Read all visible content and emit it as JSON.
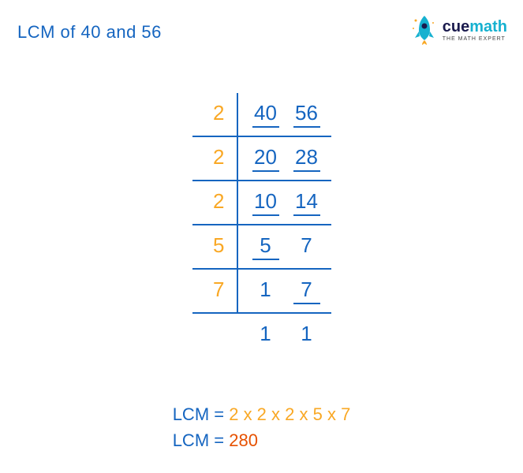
{
  "title": {
    "text": "LCM of 40 and 56",
    "color": "#1565c0"
  },
  "logo": {
    "brand_part1": "cue",
    "brand_part2": "math",
    "tagline": "THE MATH EXPERT",
    "rocket_body_color": "#16b1d0",
    "rocket_flame_color": "#f9a825",
    "text_dark_color": "#1a1a4d",
    "text_accent_color": "#16b1d0"
  },
  "colors": {
    "divisor": "#f9a825",
    "number": "#1565c0",
    "line": "#1565c0",
    "expression": "#f9a825",
    "result": "#e65100",
    "label": "#1565c0"
  },
  "division": {
    "type": "lcm-division-ladder",
    "font_size": 26,
    "rows": [
      {
        "divisor": "2",
        "values": [
          {
            "n": "40",
            "underlined": true
          },
          {
            "n": "56",
            "underlined": true
          }
        ]
      },
      {
        "divisor": "2",
        "values": [
          {
            "n": "20",
            "underlined": true
          },
          {
            "n": "28",
            "underlined": true
          }
        ]
      },
      {
        "divisor": "2",
        "values": [
          {
            "n": "10",
            "underlined": true
          },
          {
            "n": "14",
            "underlined": true
          }
        ]
      },
      {
        "divisor": "5",
        "values": [
          {
            "n": "5",
            "underlined": true
          },
          {
            "n": "7",
            "underlined": false
          }
        ]
      },
      {
        "divisor": "7",
        "values": [
          {
            "n": "1",
            "underlined": false
          },
          {
            "n": "7",
            "underlined": true
          }
        ]
      },
      {
        "divisor": "",
        "values": [
          {
            "n": "1",
            "underlined": false
          },
          {
            "n": "1",
            "underlined": false
          }
        ]
      }
    ]
  },
  "result": {
    "label": "LCM",
    "separator": " = ",
    "expression": "2 x 2 x 2 x 5 x 7",
    "value": "280"
  }
}
